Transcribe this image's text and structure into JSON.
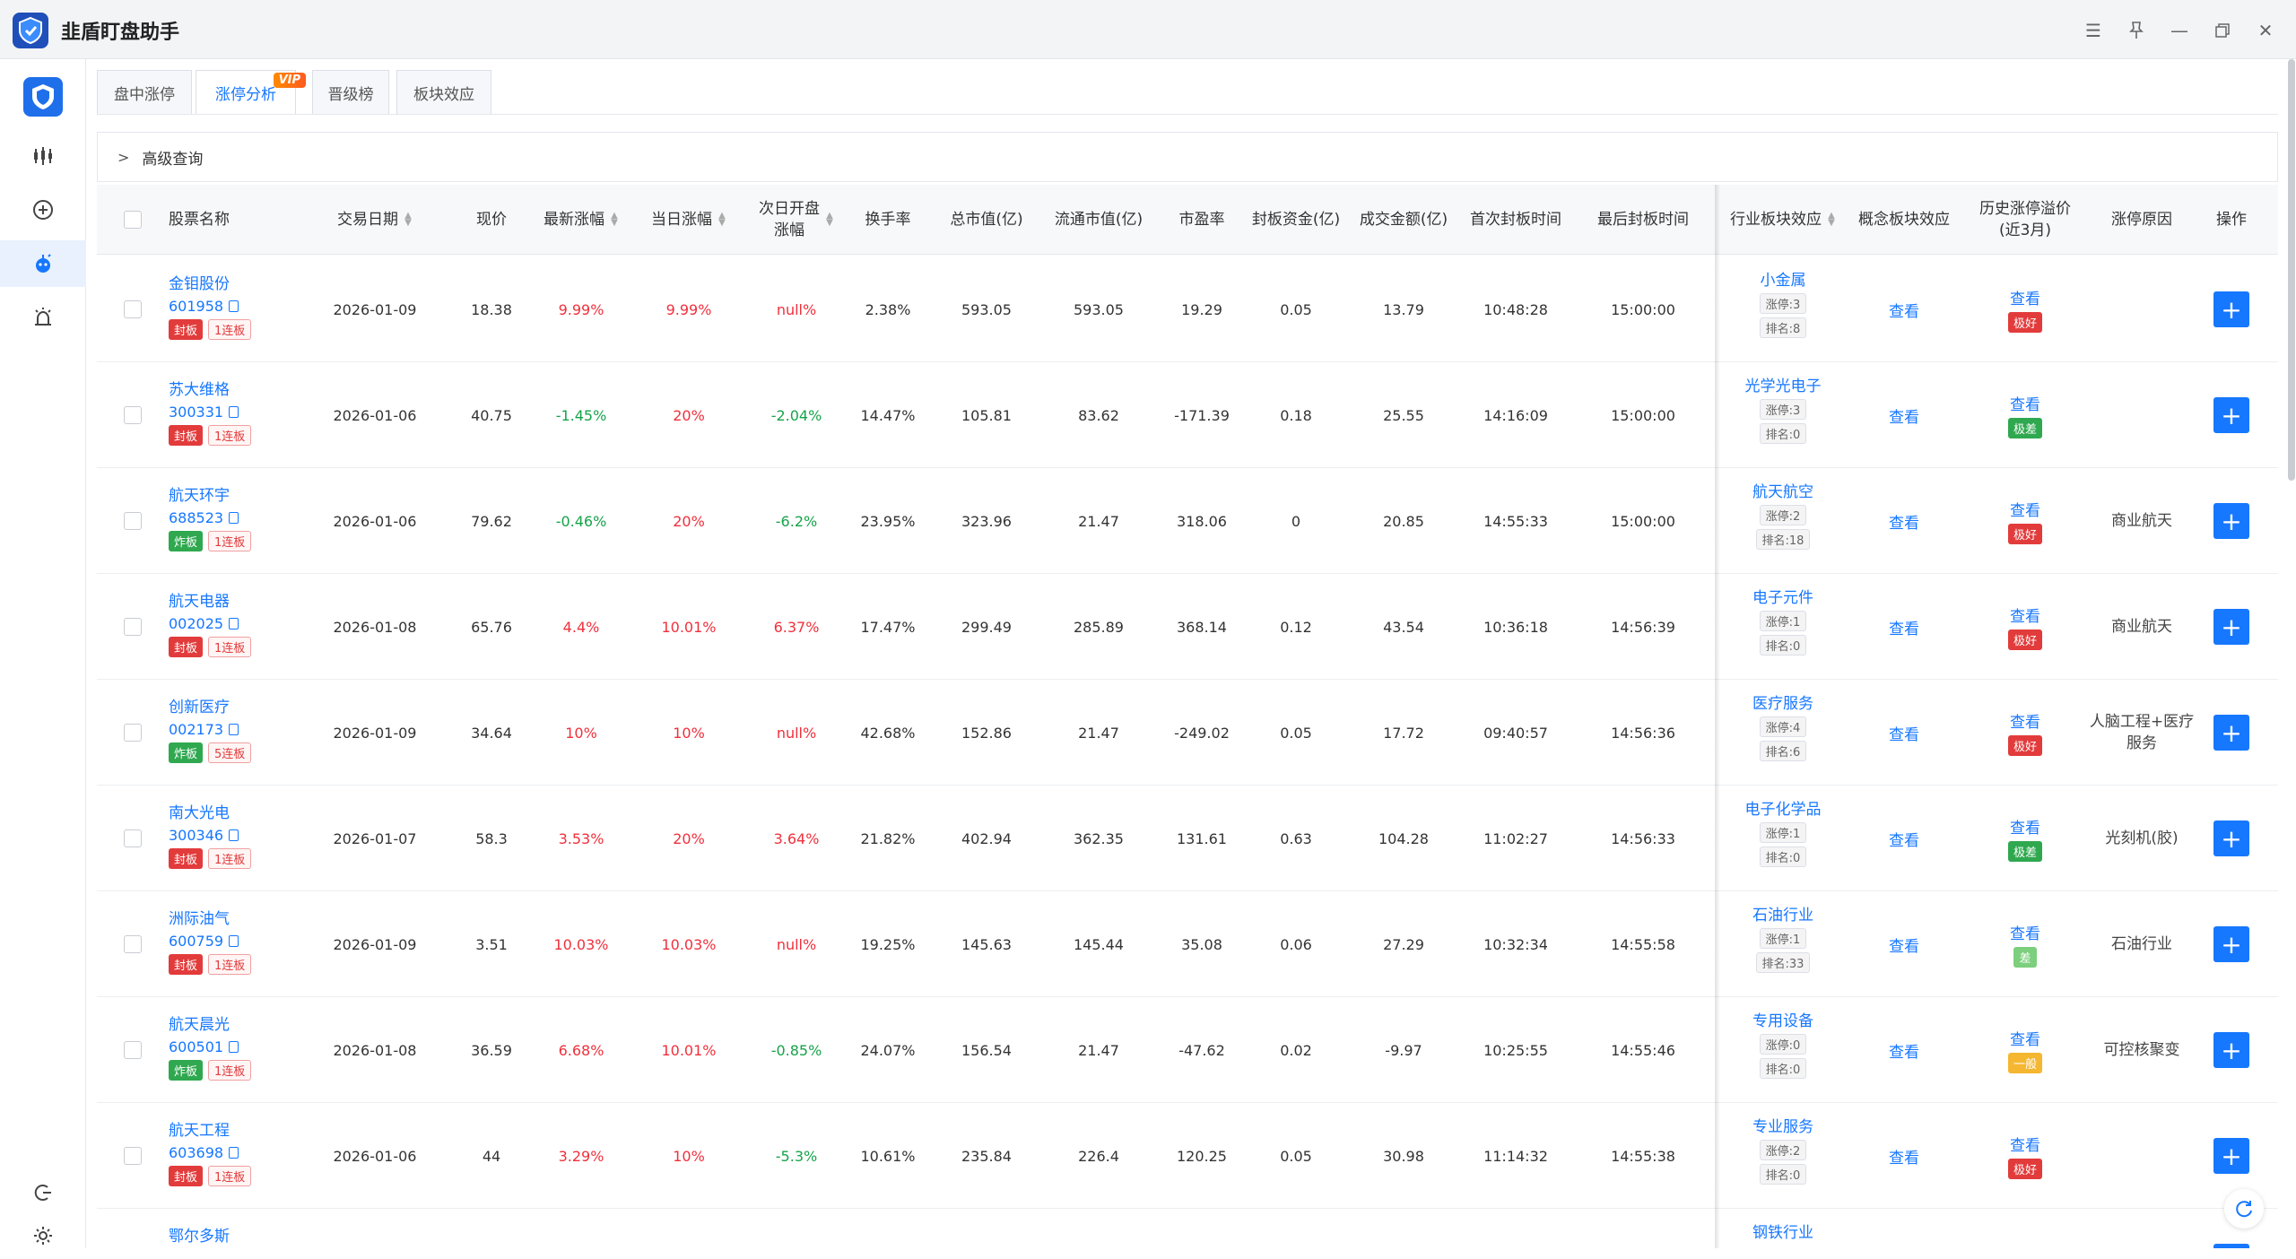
{
  "app": {
    "title": "韭盾盯盘助手"
  },
  "tabs": [
    {
      "label": "盘中涨停"
    },
    {
      "label": "涨停分析",
      "badge": "VIP"
    },
    {
      "label": "晋级榜"
    },
    {
      "label": "板块效应"
    }
  ],
  "advanced": {
    "label": "高级查询"
  },
  "columns": {
    "name": "股票名称",
    "date": "交易日期",
    "price": "现价",
    "latest": "最新涨幅",
    "today": "当日涨幅",
    "next_open_1": "次日开盘",
    "next_open_2": "涨幅",
    "turnover": "换手率",
    "mcap": "总市值(亿)",
    "fmcap": "流通市值(亿)",
    "pe": "市盈率",
    "seal": "封板资金(亿)",
    "amount": "成交金额(亿)",
    "first": "首次封板时间",
    "last": "最后封板时间",
    "industry": "行业板块效应",
    "concept": "概念板块效应",
    "premium_1": "历史涨停溢价",
    "premium_2": "(近3月)",
    "reason": "涨停原因",
    "op": "操作"
  },
  "colors": {
    "accent": "#1677ff",
    "up": "#f0303c",
    "down": "#16a34a"
  },
  "rows": [
    {
      "name": "金钼股份",
      "code": "601958",
      "status": "封板",
      "streak": "1连板",
      "date": "2026-01-09",
      "price": "18.38",
      "latest": "9.99%",
      "today": "9.99%",
      "next_open": "null%",
      "turnover": "2.38%",
      "mcap": "593.05",
      "fmcap": "593.05",
      "pe": "19.29",
      "seal": "0.05",
      "amount": "13.79",
      "first": "10:48:28",
      "last": "15:00:00",
      "industry": "小金属",
      "ind_zt": "涨停:3",
      "ind_rank": "排名:8",
      "concept": "查看",
      "premium_link": "查看",
      "premium_badge": "极好",
      "premium_color": "#e23b3b",
      "reason": "",
      "op": "+"
    },
    {
      "name": "苏大维格",
      "code": "300331",
      "status": "封板",
      "streak": "1连板",
      "date": "2026-01-06",
      "price": "40.75",
      "latest": "-1.45%",
      "today": "20%",
      "next_open": "-2.04%",
      "turnover": "14.47%",
      "mcap": "105.81",
      "fmcap": "83.62",
      "pe": "-171.39",
      "seal": "0.18",
      "amount": "25.55",
      "first": "14:16:09",
      "last": "15:00:00",
      "industry": "光学光电子",
      "ind_zt": "涨停:3",
      "ind_rank": "排名:0",
      "concept": "查看",
      "premium_link": "查看",
      "premium_badge": "极差",
      "premium_color": "#2fa84f",
      "reason": "",
      "op": "+"
    },
    {
      "name": "航天环宇",
      "code": "688523",
      "status": "炸板",
      "streak": "1连板",
      "date": "2026-01-06",
      "price": "79.62",
      "latest": "-0.46%",
      "today": "20%",
      "next_open": "-6.2%",
      "turnover": "23.95%",
      "mcap": "323.96",
      "fmcap": "21.47",
      "pe": "318.06",
      "seal": "0",
      "amount": "20.85",
      "first": "14:55:33",
      "last": "15:00:00",
      "industry": "航天航空",
      "ind_zt": "涨停:2",
      "ind_rank": "排名:18",
      "concept": "查看",
      "premium_link": "查看",
      "premium_badge": "极好",
      "premium_color": "#e23b3b",
      "reason": "商业航天",
      "op": "+"
    },
    {
      "name": "航天电器",
      "code": "002025",
      "status": "封板",
      "streak": "1连板",
      "date": "2026-01-08",
      "price": "65.76",
      "latest": "4.4%",
      "today": "10.01%",
      "next_open": "6.37%",
      "turnover": "17.47%",
      "mcap": "299.49",
      "fmcap": "285.89",
      "pe": "368.14",
      "seal": "0.12",
      "amount": "43.54",
      "first": "10:36:18",
      "last": "14:56:39",
      "industry": "电子元件",
      "ind_zt": "涨停:1",
      "ind_rank": "排名:0",
      "concept": "查看",
      "premium_link": "查看",
      "premium_badge": "极好",
      "premium_color": "#e23b3b",
      "reason": "商业航天",
      "op": "+"
    },
    {
      "name": "创新医疗",
      "code": "002173",
      "status": "炸板",
      "streak": "5连板",
      "date": "2026-01-09",
      "price": "34.64",
      "latest": "10%",
      "today": "10%",
      "next_open": "null%",
      "turnover": "42.68%",
      "mcap": "152.86",
      "fmcap": "21.47",
      "pe": "-249.02",
      "seal": "0.05",
      "amount": "17.72",
      "first": "09:40:57",
      "last": "14:56:36",
      "industry": "医疗服务",
      "ind_zt": "涨停:4",
      "ind_rank": "排名:6",
      "concept": "查看",
      "premium_link": "查看",
      "premium_badge": "极好",
      "premium_color": "#e23b3b",
      "reason": "人脑工程+医疗服务",
      "op": "+"
    },
    {
      "name": "南大光电",
      "code": "300346",
      "status": "封板",
      "streak": "1连板",
      "date": "2026-01-07",
      "price": "58.3",
      "latest": "3.53%",
      "today": "20%",
      "next_open": "3.64%",
      "turnover": "21.82%",
      "mcap": "402.94",
      "fmcap": "362.35",
      "pe": "131.61",
      "seal": "0.63",
      "amount": "104.28",
      "first": "11:02:27",
      "last": "14:56:33",
      "industry": "电子化学品",
      "ind_zt": "涨停:1",
      "ind_rank": "排名:0",
      "concept": "查看",
      "premium_link": "查看",
      "premium_badge": "极差",
      "premium_color": "#2fa84f",
      "reason": "光刻机(胶)",
      "op": "+"
    },
    {
      "name": "洲际油气",
      "code": "600759",
      "status": "封板",
      "streak": "1连板",
      "date": "2026-01-09",
      "price": "3.51",
      "latest": "10.03%",
      "today": "10.03%",
      "next_open": "null%",
      "turnover": "19.25%",
      "mcap": "145.63",
      "fmcap": "145.44",
      "pe": "35.08",
      "seal": "0.06",
      "amount": "27.29",
      "first": "10:32:34",
      "last": "14:55:58",
      "industry": "石油行业",
      "ind_zt": "涨停:1",
      "ind_rank": "排名:33",
      "concept": "查看",
      "premium_link": "查看",
      "premium_badge": "差",
      "premium_color": "#7ccf7c",
      "reason": "石油行业",
      "op": "+"
    },
    {
      "name": "航天晨光",
      "code": "600501",
      "status": "炸板",
      "streak": "1连板",
      "date": "2026-01-08",
      "price": "36.59",
      "latest": "6.68%",
      "today": "10.01%",
      "next_open": "-0.85%",
      "turnover": "24.07%",
      "mcap": "156.54",
      "fmcap": "21.47",
      "pe": "-47.62",
      "seal": "0.02",
      "amount": "-9.97",
      "first": "10:25:55",
      "last": "14:55:46",
      "industry": "专用设备",
      "ind_zt": "涨停:0",
      "ind_rank": "排名:0",
      "concept": "查看",
      "premium_link": "查看",
      "premium_badge": "一般",
      "premium_color": "#f5b731",
      "reason": "可控核聚变",
      "op": "+"
    },
    {
      "name": "航天工程",
      "code": "603698",
      "status": "封板",
      "streak": "1连板",
      "date": "2026-01-06",
      "price": "44",
      "latest": "3.29%",
      "today": "10%",
      "next_open": "-5.3%",
      "turnover": "10.61%",
      "mcap": "235.84",
      "fmcap": "226.4",
      "pe": "120.25",
      "seal": "0.05",
      "amount": "30.98",
      "first": "11:14:32",
      "last": "14:55:38",
      "industry": "专业服务",
      "ind_zt": "涨停:2",
      "ind_rank": "排名:0",
      "concept": "查看",
      "premium_link": "查看",
      "premium_badge": "极好",
      "premium_color": "#e23b3b",
      "reason": "",
      "op": "+"
    },
    {
      "name": "鄂尔多斯",
      "code": "",
      "status": "",
      "streak": "",
      "date": "",
      "price": "",
      "latest": "",
      "today": "",
      "next_open": "",
      "turnover": "",
      "mcap": "",
      "fmcap": "",
      "pe": "",
      "seal": "",
      "amount": "",
      "first": "",
      "last": "",
      "industry": "钢铁行业",
      "ind_zt": "",
      "ind_rank": "",
      "concept": "",
      "premium_link": "查看",
      "premium_badge": "",
      "premium_color": "#e23b3b",
      "reason": "",
      "op": "+"
    }
  ]
}
